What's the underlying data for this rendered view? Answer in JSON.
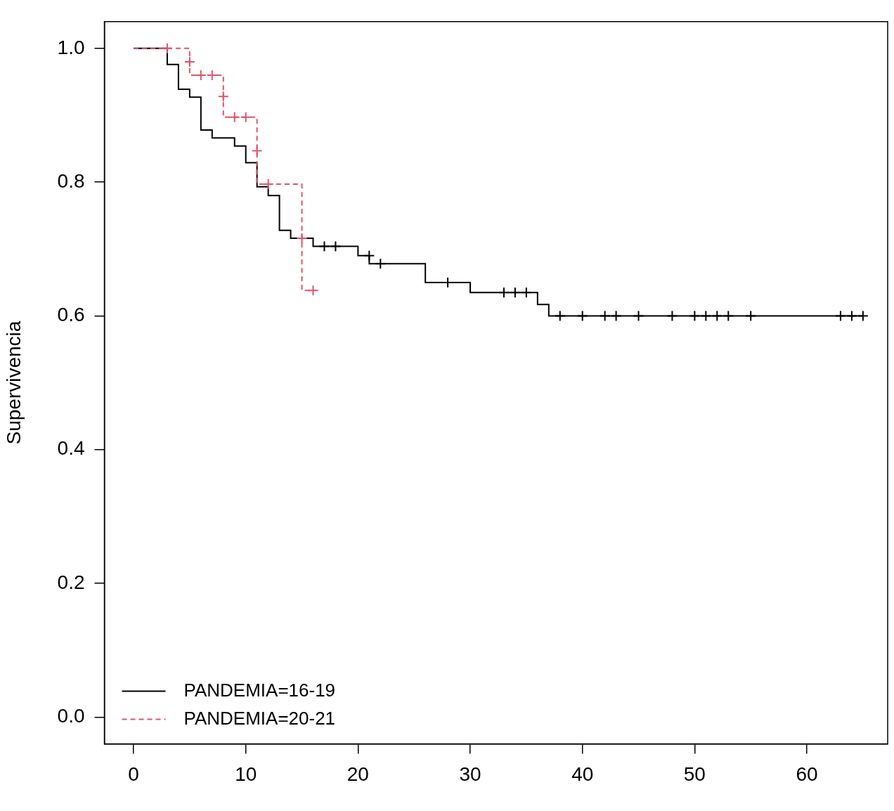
{
  "chart_data": {
    "type": "step",
    "ylabel": "Supervivencia",
    "xlim": [
      -2.6,
      67.2
    ],
    "ylim": [
      -0.04,
      1.04
    ],
    "xticks": [
      0,
      10,
      20,
      30,
      40,
      50,
      60
    ],
    "yticks": [
      {
        "value": 0,
        "label": "0.0"
      },
      0.2,
      0.4,
      0.6,
      0.8,
      {
        "value": 1,
        "label": "1.0"
      }
    ],
    "grid": false,
    "legend": "bottom left",
    "series": [
      {
        "name": "PANDEMIA=16-19",
        "color": "#000000",
        "line_style": "solid",
        "x": [
          0,
          3,
          4,
          5,
          6,
          7,
          9,
          10,
          11,
          12,
          13,
          14,
          16,
          20,
          21,
          26,
          30,
          36,
          37,
          65
        ],
        "values": [
          1,
          0.976,
          0.939,
          0.927,
          0.878,
          0.866,
          0.854,
          0.829,
          0.793,
          0.78,
          0.728,
          0.716,
          0.704,
          0.69,
          0.678,
          0.65,
          0.635,
          0.617,
          0.6,
          0.6
        ]
      },
      {
        "name": "PANDEMIA=20-21",
        "color": "#df536b",
        "line_style": "dashed",
        "x": [
          0,
          5,
          8,
          11,
          15,
          16
        ],
        "values": [
          1,
          0.96,
          0.897,
          0.797,
          0.638,
          0.638
        ]
      },
      {
        "type": "scatter",
        "color": "#000000",
        "marker": "cross",
        "x": [
          17,
          18,
          21,
          22,
          28,
          33,
          34,
          35,
          38,
          40,
          42,
          43,
          45,
          48,
          50,
          51,
          52,
          53,
          55,
          63,
          64,
          65
        ],
        "values": [
          0.704,
          0.704,
          0.69,
          0.678,
          0.65,
          0.635,
          0.635,
          0.635,
          0.6,
          0.6,
          0.6,
          0.6,
          0.6,
          0.6,
          0.6,
          0.6,
          0.6,
          0.6,
          0.6,
          0.6,
          0.6,
          0.6
        ]
      },
      {
        "type": "scatter",
        "color": "#df536b",
        "marker": "cross",
        "x": [
          3,
          5,
          6,
          7,
          8,
          9,
          10,
          11,
          12,
          15,
          16
        ],
        "values": [
          1,
          0.98,
          0.96,
          0.96,
          0.928,
          0.897,
          0.897,
          0.847,
          0.797,
          0.716,
          0.638
        ]
      }
    ]
  }
}
